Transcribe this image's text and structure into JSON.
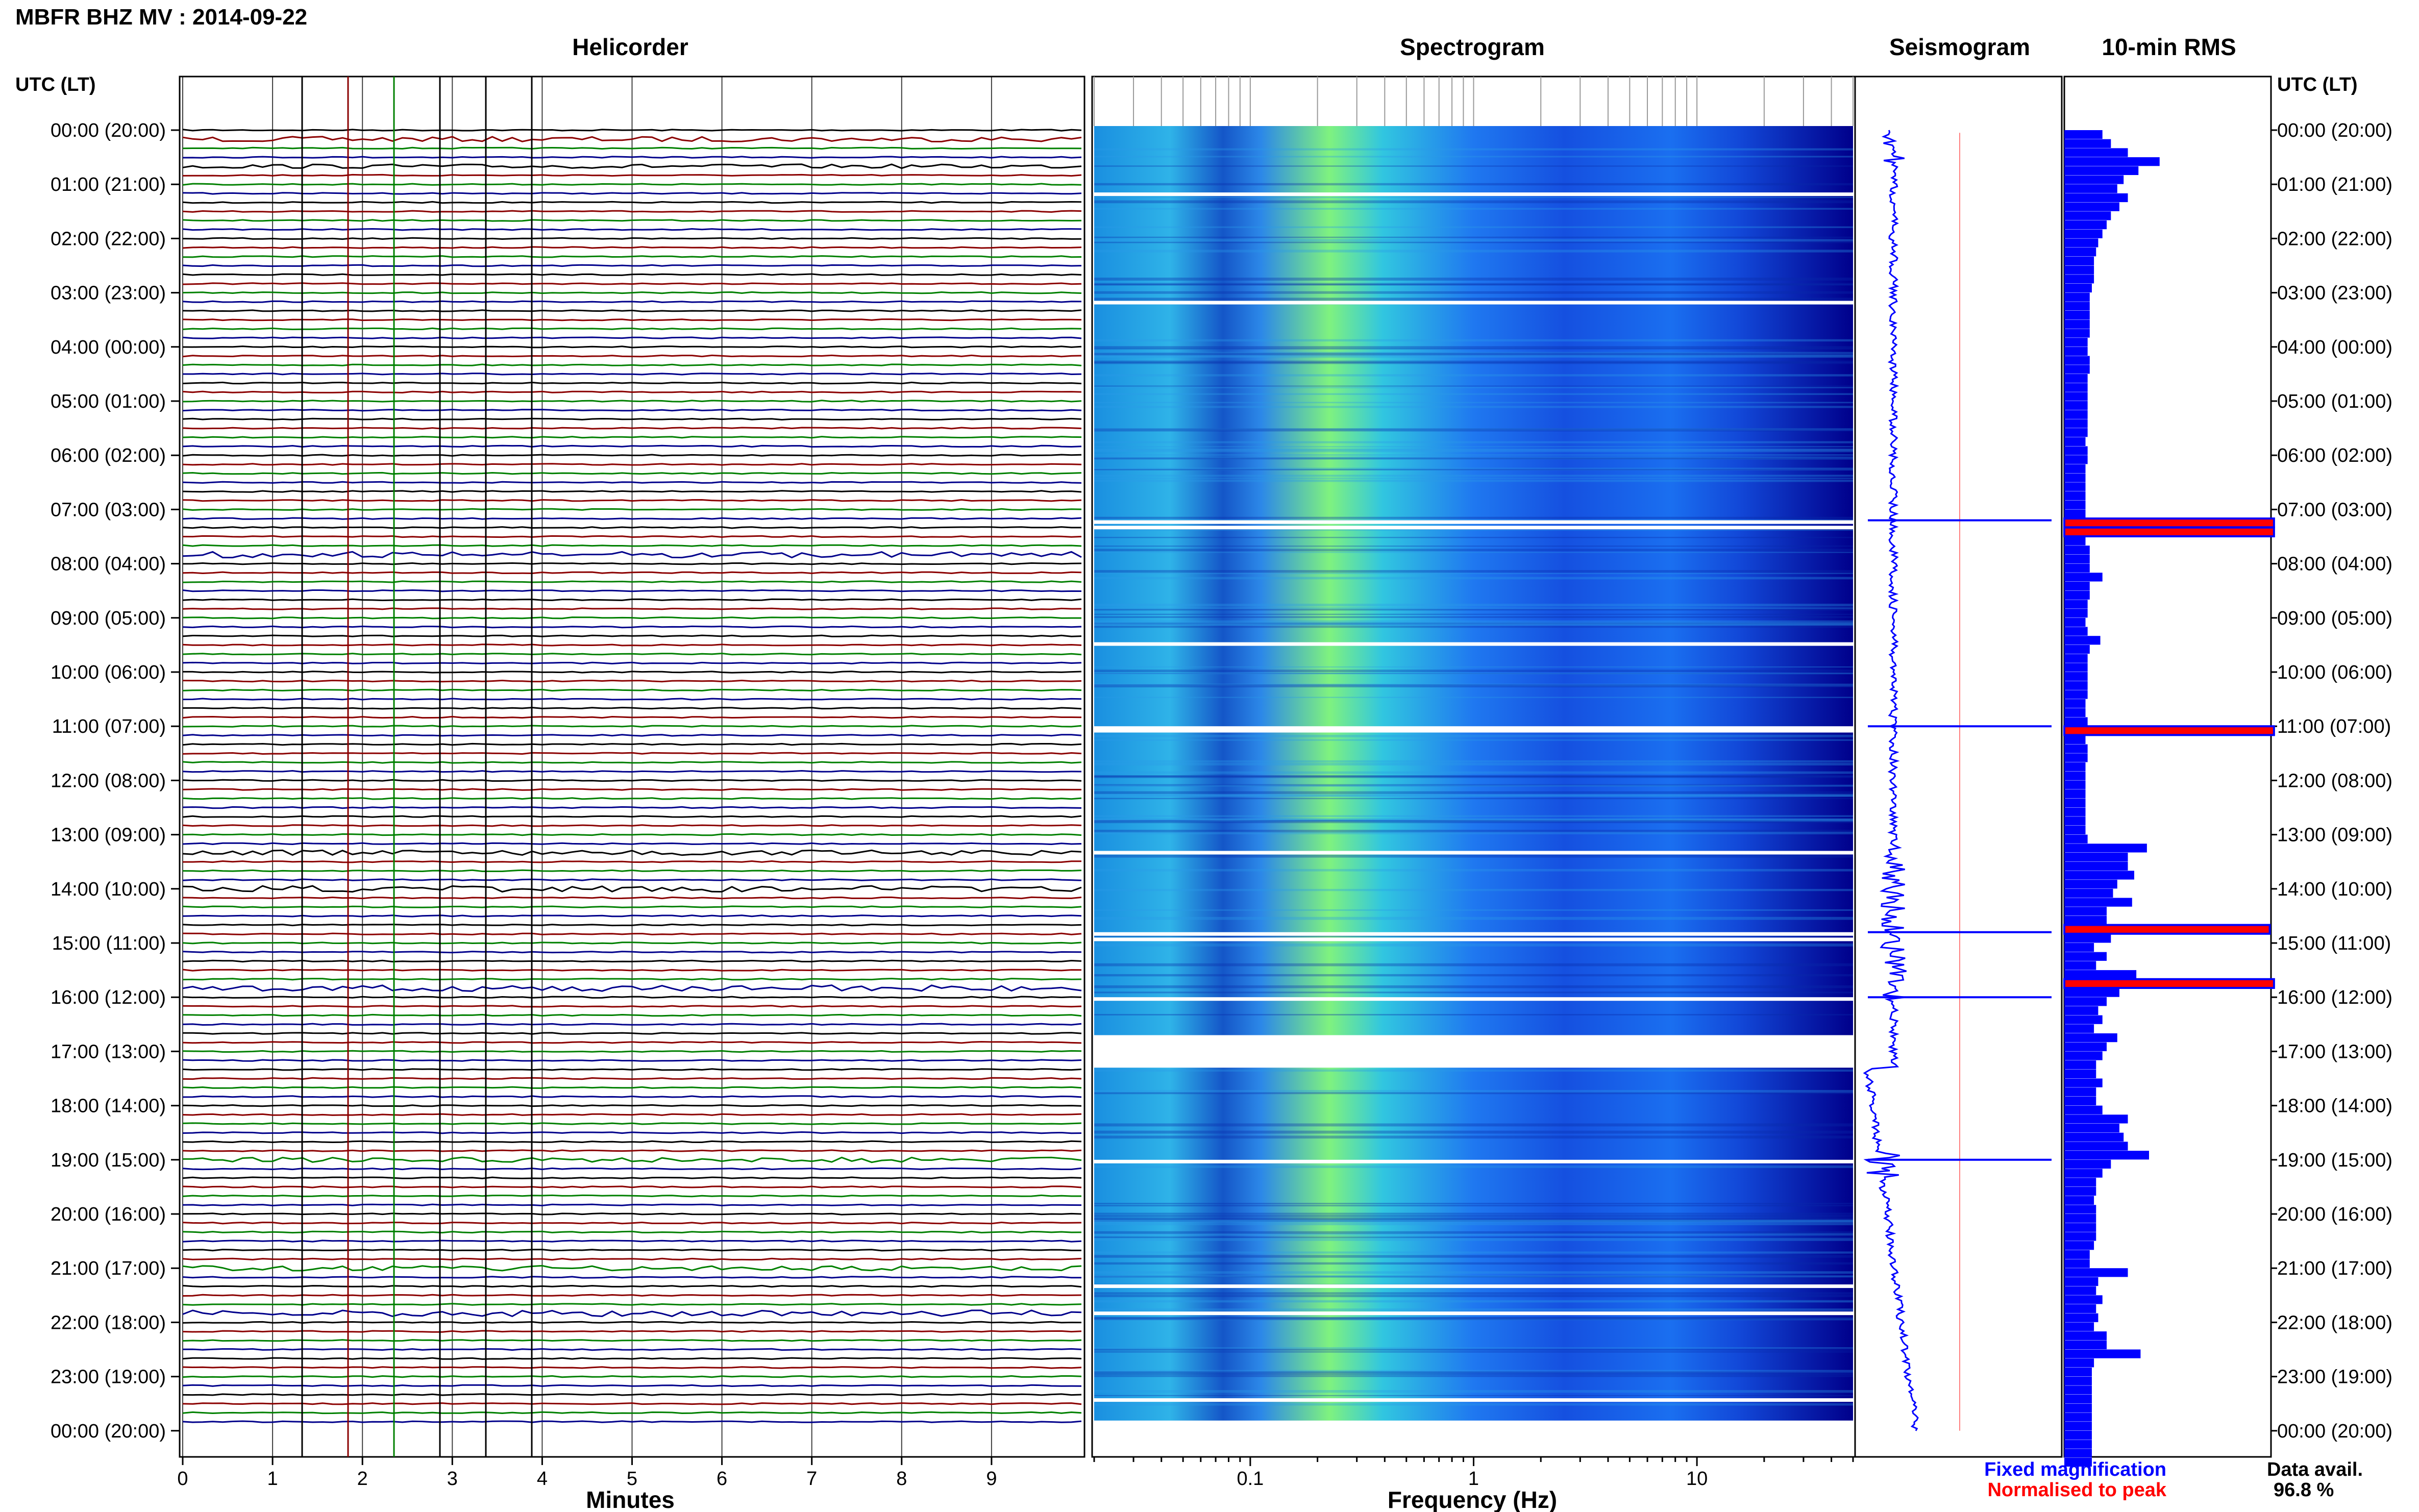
{
  "title": "MBFR BHZ MV : 2014-09-22",
  "panels": {
    "helicorder": "Helicorder",
    "spectrogram": "Spectrogram",
    "seismogram": "Seismogram",
    "rms": "10-min RMS"
  },
  "time_axis_label": "UTC (LT)",
  "time_labels": [
    "00:00 (20:00)",
    "01:00 (21:00)",
    "02:00 (22:00)",
    "03:00 (23:00)",
    "04:00 (00:00)",
    "05:00 (01:00)",
    "06:00 (02:00)",
    "07:00 (03:00)",
    "08:00 (04:00)",
    "09:00 (05:00)",
    "10:00 (06:00)",
    "11:00 (07:00)",
    "12:00 (08:00)",
    "13:00 (09:00)",
    "14:00 (10:00)",
    "15:00 (11:00)",
    "16:00 (12:00)",
    "17:00 (13:00)",
    "18:00 (14:00)",
    "19:00 (15:00)",
    "20:00 (16:00)",
    "21:00 (17:00)",
    "22:00 (18:00)",
    "23:00 (19:00)",
    "00:00 (20:00)"
  ],
  "minutes_axis": {
    "label": "Minutes",
    "ticks": [
      "0",
      "1",
      "2",
      "3",
      "4",
      "5",
      "6",
      "7",
      "8",
      "9"
    ]
  },
  "frequency_axis": {
    "label": "Frequency (Hz)",
    "ticks": [
      "0.1",
      "1",
      "10"
    ]
  },
  "legend": {
    "fixed": "Fixed magnification",
    "normalised": "Normalised to peak"
  },
  "data_avail": {
    "label": "Data avail.",
    "value": "96.8 %"
  },
  "colors": {
    "trace_cycle": [
      "#000000",
      "#8b0000",
      "#008000",
      "#00008b"
    ],
    "spectrogram_low": "#00008b",
    "spectrogram_mid": "#1e7fff",
    "spectrogram_high": "#7fff7f",
    "rms_fixed": "#0000ff",
    "rms_normalised": "#ff0000"
  },
  "chart_data": [
    {
      "type": "line",
      "name": "helicorder",
      "x_unit": "minutes",
      "xlim": [
        0,
        10
      ],
      "rows_per_hour": 6,
      "hours": 24,
      "event_hours": [
        {
          "hour": 0.2,
          "minute_range": [
            0,
            10
          ],
          "amplitude": 0.5
        },
        {
          "hour": 0.6,
          "minute_range": [
            0,
            10
          ],
          "amplitude": 0.4
        },
        {
          "hour": 7.8,
          "minute_range": [
            0,
            1
          ],
          "amplitude": 0.6
        },
        {
          "hour": 13.3,
          "minute_range": [
            0,
            10
          ],
          "amplitude": 0.5
        },
        {
          "hour": 14.0,
          "minute_range": [
            0,
            10
          ],
          "amplitude": 0.6
        },
        {
          "hour": 15.8,
          "minute_range": [
            0,
            10
          ],
          "amplitude": 0.6
        },
        {
          "hour": 19.0,
          "minute_range": [
            0,
            10
          ],
          "amplitude": 0.5
        },
        {
          "hour": 21.0,
          "minute_range": [
            0,
            1
          ],
          "amplitude": 0.5
        },
        {
          "hour": 21.9,
          "minute_range": [
            2.7,
            3.3
          ],
          "amplitude": 0.6
        }
      ]
    },
    {
      "type": "heatmap",
      "name": "spectrogram",
      "x_unit": "Hz",
      "x_scale": "log",
      "xlim": [
        0.02,
        50
      ],
      "hours": 24,
      "peak_frequency_hz": 0.25,
      "data_gap_hours": [
        [
          16.7,
          17.3
        ]
      ]
    },
    {
      "type": "line",
      "name": "seismogram",
      "hours": 24,
      "spike_hours": [
        7.2,
        11.0,
        14.8,
        16.0,
        19.0
      ]
    },
    {
      "type": "bar",
      "name": "10-min RMS",
      "orientation": "horizontal",
      "bin_minutes": 10,
      "hours": 24,
      "values_relative": [
        0.18,
        0.22,
        0.3,
        0.45,
        0.35,
        0.28,
        0.25,
        0.3,
        0.26,
        0.22,
        0.2,
        0.18,
        0.16,
        0.15,
        0.14,
        0.14,
        0.14,
        0.13,
        0.12,
        0.12,
        0.12,
        0.12,
        0.12,
        0.11,
        0.11,
        0.12,
        0.12,
        0.11,
        0.11,
        0.11,
        0.11,
        0.11,
        0.11,
        0.11,
        0.1,
        0.11,
        0.11,
        0.1,
        0.1,
        0.1,
        0.1,
        0.1,
        0.1,
        0.99,
        0.99,
        0.1,
        0.12,
        0.12,
        0.12,
        0.18,
        0.12,
        0.12,
        0.11,
        0.11,
        0.1,
        0.11,
        0.17,
        0.12,
        0.11,
        0.11,
        0.11,
        0.11,
        0.11,
        0.1,
        0.1,
        0.11,
        0.99,
        0.1,
        0.11,
        0.11,
        0.1,
        0.1,
        0.1,
        0.1,
        0.1,
        0.1,
        0.1,
        0.1,
        0.11,
        0.39,
        0.3,
        0.3,
        0.33,
        0.25,
        0.23,
        0.32,
        0.2,
        0.2,
        0.97,
        0.22,
        0.14,
        0.2,
        0.15,
        0.34,
        0.99,
        0.26,
        0.2,
        0.16,
        0.18,
        0.14,
        0.25,
        0.2,
        0.18,
        0.15,
        0.15,
        0.18,
        0.15,
        0.15,
        0.18,
        0.3,
        0.26,
        0.28,
        0.3,
        0.4,
        0.22,
        0.18,
        0.15,
        0.15,
        0.14,
        0.15,
        0.15,
        0.15,
        0.15,
        0.14,
        0.12,
        0.12,
        0.3,
        0.16,
        0.15,
        0.18,
        0.15,
        0.16,
        0.14,
        0.2,
        0.2,
        0.36,
        0.14,
        0.13,
        0.13,
        0.13,
        0.13,
        0.13,
        0.13,
        0.13,
        0.13,
        0.13,
        0.13,
        0.13
      ]
    }
  ]
}
